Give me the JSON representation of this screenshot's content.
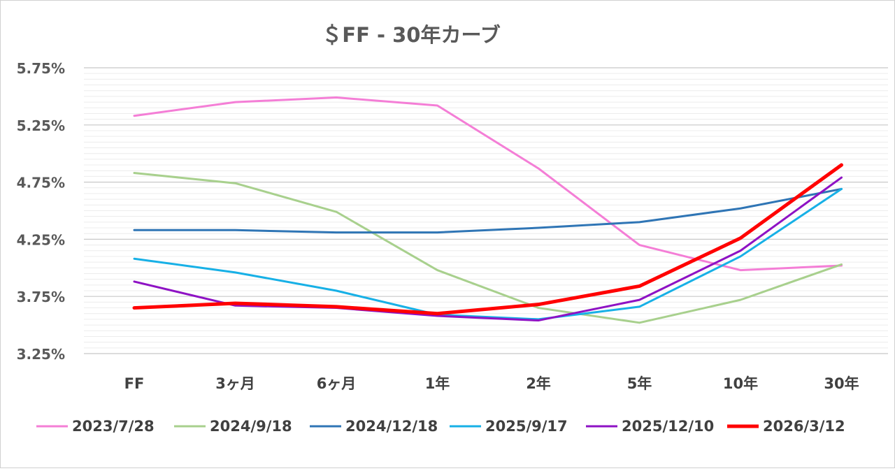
{
  "chart_data": {
    "type": "line",
    "title": "＄FF - 30年カーブ",
    "categories": [
      "FF",
      "3ヶ月",
      "6ヶ月",
      "1年",
      "2年",
      "5年",
      "10年",
      "30年"
    ],
    "yticks": [
      "3.25%",
      "3.75%",
      "4.25%",
      "4.75%",
      "5.25%",
      "5.75%"
    ],
    "ylim": [
      3.25,
      5.75
    ],
    "grid": true,
    "legend_position": "bottom",
    "series": [
      {
        "name": "2023/7/28",
        "color": "#f47ed6",
        "values": [
          5.33,
          5.45,
          5.49,
          5.42,
          4.87,
          4.2,
          3.98,
          4.02
        ]
      },
      {
        "name": "2024/9/18",
        "color": "#a8d08d",
        "values": [
          4.83,
          4.74,
          4.49,
          3.98,
          3.65,
          3.52,
          3.72,
          4.03
        ]
      },
      {
        "name": "2024/12/18",
        "color": "#2f75b5",
        "values": [
          4.33,
          4.33,
          4.31,
          4.31,
          4.35,
          4.4,
          4.52,
          4.69
        ]
      },
      {
        "name": "2025/9/17",
        "color": "#17b0e6",
        "values": [
          4.08,
          3.96,
          3.8,
          3.59,
          3.55,
          3.66,
          4.1,
          4.69
        ]
      },
      {
        "name": "2025/12/10",
        "color": "#8e12c4",
        "values": [
          3.88,
          3.67,
          3.65,
          3.58,
          3.54,
          3.72,
          4.15,
          4.79
        ]
      },
      {
        "name": "2026/3/12",
        "color": "#ff0000",
        "values": [
          3.65,
          3.69,
          3.66,
          3.6,
          3.68,
          3.84,
          4.26,
          4.9
        ]
      }
    ]
  }
}
